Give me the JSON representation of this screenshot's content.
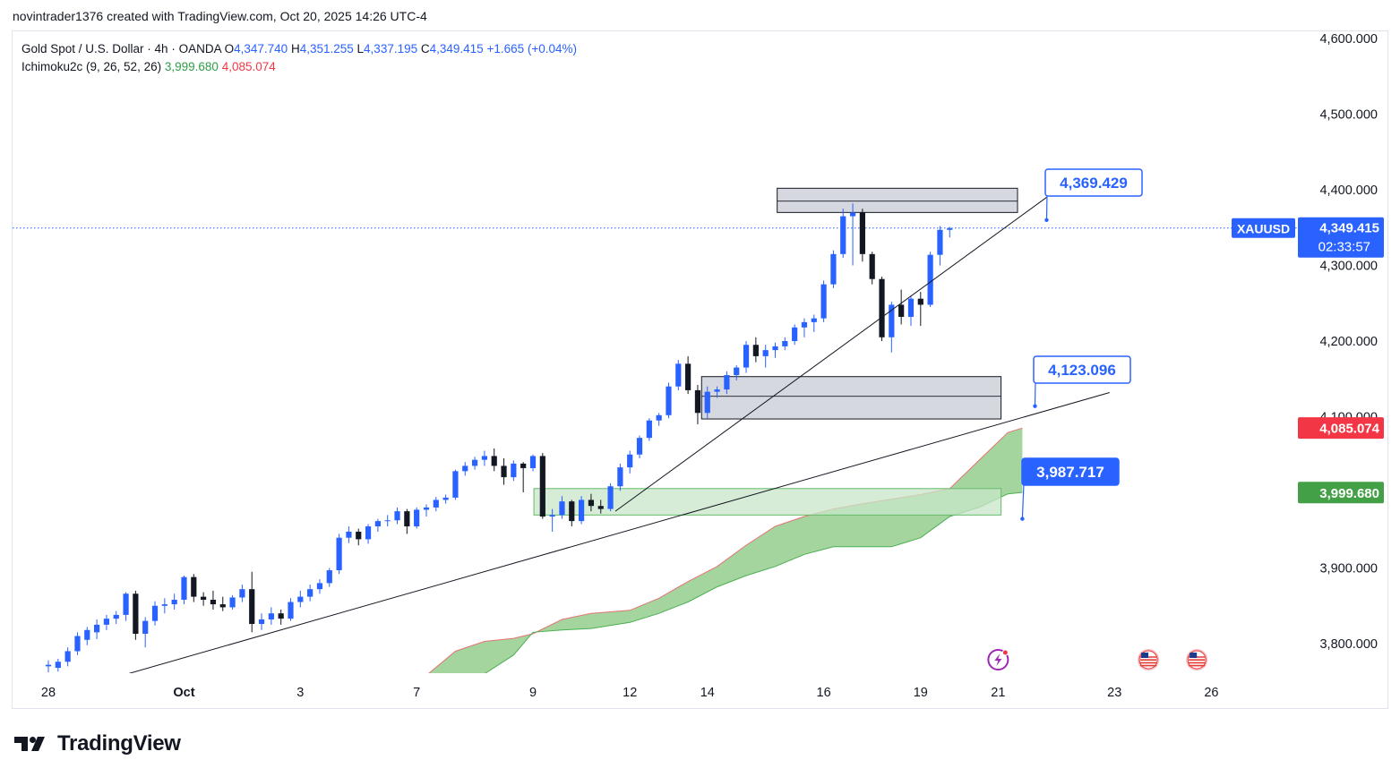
{
  "header": {
    "credit": "novintrader1376 created with TradingView.com, Oct 20, 2025 14:26 UTC-4"
  },
  "legend": {
    "symbol": "Gold Spot / U.S. Dollar · 4h · OANDA",
    "open_label": "O",
    "open": "4,347.740",
    "high_label": "H",
    "high": "4,351.255",
    "low_label": "L",
    "low": "4,337.195",
    "close_label": "C",
    "close": "4,349.415",
    "change": "+1.665 (+0.04%)",
    "indicator": "Ichimoku2c (9, 26, 52, 26)",
    "ind_value1": "3,999.680",
    "ind_value2": "4,085.074"
  },
  "branding": {
    "logo_text": "TradingView"
  },
  "colors": {
    "up": "#2962ff",
    "down": "#131722",
    "cloud": "#9fd39a",
    "cloud_edge_top": "#e57373",
    "cloud_edge_bottom": "#4caf50",
    "callout": "#2962ff",
    "red_tag": "#f23645",
    "green_tag": "#43a047"
  },
  "chart_data": {
    "type": "candlestick",
    "title": "Gold Spot / U.S. Dollar · 4h · OANDA",
    "ylim": [
      3750,
      4620
    ],
    "y_ticks": [
      {
        "label": "4,600.000",
        "value": 4600
      },
      {
        "label": "4,500.000",
        "value": 4500
      },
      {
        "label": "4,400.000",
        "value": 4400
      },
      {
        "label": "4,300.000",
        "value": 4300
      },
      {
        "label": "4,200.000",
        "value": 4200
      },
      {
        "label": "4,100.000",
        "value": 4100
      },
      {
        "label": "3,900.000",
        "value": 3900
      },
      {
        "label": "3,800.000",
        "value": 3800
      }
    ],
    "x_ticks": [
      {
        "label": "28",
        "bar": 0
      },
      {
        "label": "Oct",
        "bar": 14
      },
      {
        "label": "3",
        "bar": 26
      },
      {
        "label": "7",
        "bar": 38
      },
      {
        "label": "9",
        "bar": 50
      },
      {
        "label": "12",
        "bar": 60
      },
      {
        "label": "14",
        "bar": 68
      },
      {
        "label": "16",
        "bar": 80
      },
      {
        "label": "19",
        "bar": 90
      },
      {
        "label": "21",
        "bar": 98
      },
      {
        "label": "23",
        "bar": 110
      },
      {
        "label": "26",
        "bar": 120
      }
    ],
    "candles": [
      [
        3770,
        3778,
        3762,
        3772
      ],
      [
        3768,
        3780,
        3763,
        3776
      ],
      [
        3776,
        3795,
        3770,
        3790
      ],
      [
        3790,
        3815,
        3785,
        3810
      ],
      [
        3805,
        3822,
        3798,
        3818
      ],
      [
        3815,
        3832,
        3806,
        3825
      ],
      [
        3825,
        3838,
        3818,
        3833
      ],
      [
        3833,
        3843,
        3826,
        3838
      ],
      [
        3838,
        3868,
        3830,
        3866
      ],
      [
        3866,
        3870,
        3805,
        3813
      ],
      [
        3813,
        3835,
        3795,
        3830
      ],
      [
        3830,
        3856,
        3824,
        3850
      ],
      [
        3850,
        3860,
        3840,
        3852
      ],
      [
        3852,
        3866,
        3845,
        3858
      ],
      [
        3858,
        3890,
        3852,
        3888
      ],
      [
        3888,
        3892,
        3855,
        3862
      ],
      [
        3862,
        3868,
        3850,
        3858
      ],
      [
        3858,
        3870,
        3845,
        3852
      ],
      [
        3852,
        3862,
        3843,
        3848
      ],
      [
        3848,
        3864,
        3845,
        3861
      ],
      [
        3861,
        3878,
        3855,
        3872
      ],
      [
        3872,
        3895,
        3815,
        3826
      ],
      [
        3826,
        3840,
        3818,
        3832
      ],
      [
        3832,
        3848,
        3825,
        3840
      ],
      [
        3840,
        3845,
        3825,
        3833
      ],
      [
        3833,
        3860,
        3830,
        3855
      ],
      [
        3855,
        3870,
        3848,
        3862
      ],
      [
        3862,
        3878,
        3856,
        3872
      ],
      [
        3872,
        3885,
        3866,
        3880
      ],
      [
        3880,
        3900,
        3875,
        3897
      ],
      [
        3897,
        3945,
        3892,
        3940
      ],
      [
        3940,
        3955,
        3933,
        3948
      ],
      [
        3948,
        3952,
        3930,
        3938
      ],
      [
        3938,
        3958,
        3932,
        3955
      ],
      [
        3955,
        3965,
        3948,
        3962
      ],
      [
        3962,
        3970,
        3955,
        3963
      ],
      [
        3963,
        3980,
        3958,
        3975
      ],
      [
        3975,
        3978,
        3945,
        3955
      ],
      [
        3955,
        3980,
        3952,
        3977
      ],
      [
        3977,
        3984,
        3968,
        3980
      ],
      [
        3980,
        3994,
        3975,
        3990
      ],
      [
        3990,
        3997,
        3985,
        3993
      ],
      [
        3993,
        4030,
        3990,
        4028
      ],
      [
        4028,
        4040,
        4022,
        4035
      ],
      [
        4035,
        4047,
        4030,
        4043
      ],
      [
        4043,
        4055,
        4035,
        4048
      ],
      [
        4048,
        4058,
        4028,
        4035
      ],
      [
        4035,
        4045,
        4010,
        4020
      ],
      [
        4020,
        4042,
        4015,
        4038
      ],
      [
        4038,
        4040,
        4000,
        4032
      ],
      [
        4032,
        4050,
        4028,
        4048
      ],
      [
        4048,
        4052,
        3965,
        3968
      ],
      [
        3968,
        3978,
        3948,
        3970
      ],
      [
        3970,
        3995,
        3965,
        3988
      ],
      [
        3988,
        3990,
        3955,
        3962
      ],
      [
        3962,
        3995,
        3958,
        3990
      ],
      [
        3990,
        3998,
        3975,
        3982
      ],
      [
        3982,
        3990,
        3972,
        3978
      ],
      [
        3978,
        4012,
        3975,
        4008
      ],
      [
        4008,
        4038,
        4002,
        4033
      ],
      [
        4033,
        4055,
        4025,
        4050
      ],
      [
        4050,
        4075,
        4045,
        4072
      ],
      [
        4072,
        4098,
        4068,
        4095
      ],
      [
        4095,
        4105,
        4088,
        4102
      ],
      [
        4102,
        4145,
        4098,
        4140
      ],
      [
        4140,
        4175,
        4135,
        4170
      ],
      [
        4170,
        4180,
        4130,
        4135
      ],
      [
        4135,
        4142,
        4090,
        4105
      ],
      [
        4105,
        4140,
        4098,
        4133
      ],
      [
        4133,
        4140,
        4125,
        4136
      ],
      [
        4136,
        4160,
        4130,
        4155
      ],
      [
        4155,
        4168,
        4148,
        4165
      ],
      [
        4165,
        4200,
        4158,
        4195
      ],
      [
        4195,
        4205,
        4172,
        4180
      ],
      [
        4180,
        4195,
        4165,
        4188
      ],
      [
        4188,
        4198,
        4178,
        4193
      ],
      [
        4193,
        4205,
        4188,
        4200
      ],
      [
        4200,
        4222,
        4195,
        4218
      ],
      [
        4218,
        4230,
        4205,
        4225
      ],
      [
        4225,
        4235,
        4212,
        4230
      ],
      [
        4230,
        4280,
        4225,
        4275
      ],
      [
        4275,
        4320,
        4270,
        4315
      ],
      [
        4315,
        4375,
        4310,
        4365
      ],
      [
        4365,
        4382,
        4300,
        4370
      ],
      [
        4370,
        4375,
        4305,
        4315
      ],
      [
        4315,
        4318,
        4275,
        4282
      ],
      [
        4282,
        4285,
        4200,
        4205
      ],
      [
        4205,
        4252,
        4185,
        4248
      ],
      [
        4248,
        4268,
        4222,
        4232
      ],
      [
        4232,
        4260,
        4220,
        4256
      ],
      [
        4256,
        4265,
        4220,
        4248
      ],
      [
        4248,
        4318,
        4245,
        4314
      ],
      [
        4314,
        4352,
        4300,
        4347
      ],
      [
        4347,
        4351,
        4337,
        4349
      ]
    ],
    "cloud": {
      "x": [
        39,
        42,
        45,
        48,
        50,
        53,
        56,
        60,
        63,
        66,
        69,
        72,
        75,
        78,
        81,
        84,
        87,
        90,
        93,
        96,
        99,
        100.5
      ],
      "span_a": [
        3758,
        3790,
        3803,
        3807,
        3813,
        3832,
        3840,
        3844,
        3860,
        3882,
        3902,
        3930,
        3955,
        3968,
        3978,
        3985,
        3991,
        3997,
        4005,
        4042,
        4079,
        4085
      ],
      "span_b": [
        3758,
        3758,
        3760,
        3785,
        3815,
        3818,
        3820,
        3828,
        3840,
        3855,
        3875,
        3890,
        3902,
        3918,
        3928,
        3928,
        3928,
        3940,
        3968,
        3980,
        3998,
        4000
      ]
    },
    "price_line": 4349.415,
    "zones": [
      {
        "from_bar": 75.2,
        "to_bar": 100,
        "low": 4370,
        "high": 4402,
        "mid": 4385,
        "fill": "#d1d4dc"
      },
      {
        "from_bar": 67.4,
        "to_bar": 98.3,
        "low": 4097,
        "high": 4153,
        "mid": 4127,
        "fill": "#d1d4dc"
      },
      {
        "from_bar": 50.1,
        "to_bar": 98.3,
        "low": 3970,
        "high": 4005,
        "mid": null,
        "fill": "#c8e6c9"
      }
    ],
    "trendlines": [
      {
        "x1": 6,
        "y1": 3752,
        "x2": 109.5,
        "y2": 4132
      },
      {
        "x1": 58.5,
        "y1": 3975,
        "x2": 103,
        "y2": 4390
      }
    ],
    "callouts": [
      {
        "label": "4,369.429",
        "anchor_bar": 103,
        "anchor_price": 4360,
        "filled": false
      },
      {
        "label": "4,123.096",
        "anchor_bar": 101.8,
        "anchor_price": 4114,
        "filled": false
      },
      {
        "label": "3,987.717",
        "anchor_bar": 100.5,
        "anchor_price": 3965,
        "filled": true
      }
    ],
    "right_tags": [
      {
        "symbol": "XAUUSD",
        "value": "4,349.415",
        "countdown": "02:33:57",
        "price": 4349.415,
        "color": "#2962ff"
      },
      {
        "value": "4,085.074",
        "price": 4085.074,
        "color": "#f23645"
      },
      {
        "value": "3,999.680",
        "price": 3999.68,
        "color": "#43a047"
      }
    ],
    "events": [
      {
        "kind": "earnings-flash",
        "bar": 98
      },
      {
        "kind": "us-event",
        "bar": 113.5
      },
      {
        "kind": "us-event",
        "bar": 118.5
      }
    ]
  }
}
